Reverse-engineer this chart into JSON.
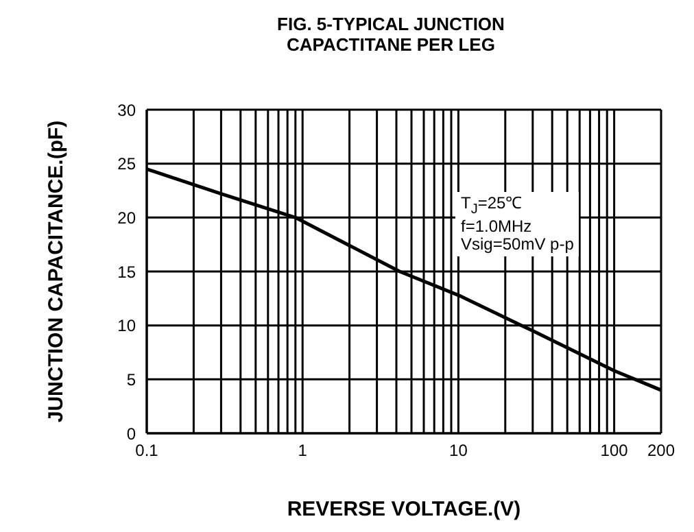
{
  "chart_data": {
    "type": "line",
    "title": "FIG. 5-TYPICAL JUNCTION CAPACTITANE PER LEG",
    "xlabel": "REVERSE VOLTAGE.(V)",
    "ylabel": "JUNCTION CAPACITANCE.(pF)",
    "annotations": [
      "T$_{J}$=25℃",
      "f=1.0MHz",
      "Vsig=50mV p-p"
    ],
    "x": [
      0.1,
      0.3,
      0.9,
      4.2,
      10,
      30,
      100,
      200
    ],
    "series": [
      {
        "color": "#000000",
        "values": [
          24.5,
          22.2,
          20,
          15,
          12.8,
          9.5,
          5.8,
          4
        ]
      }
    ],
    "log": "x",
    "grid": true,
    "xlim": [
      0.1,
      200
    ],
    "xticks": [
      0.1,
      {
        "value": 0.2,
        "label": null
      },
      {
        "value": 0.3,
        "label": null
      },
      {
        "value": 0.4,
        "label": null
      },
      {
        "value": 0.5,
        "label": null
      },
      {
        "value": 0.6,
        "label": null
      },
      {
        "value": 0.7,
        "label": null
      },
      {
        "value": 0.8,
        "label": null
      },
      {
        "value": 0.9,
        "label": null
      },
      1,
      {
        "value": 2,
        "label": null
      },
      {
        "value": 3,
        "label": null
      },
      {
        "value": 4,
        "label": null
      },
      {
        "value": 5,
        "label": null
      },
      {
        "value": 6,
        "label": null
      },
      {
        "value": 7,
        "label": null
      },
      {
        "value": 8,
        "label": null
      },
      {
        "value": 9,
        "label": null
      },
      10,
      {
        "value": 20,
        "label": null
      },
      {
        "value": 30,
        "label": null
      },
      {
        "value": 40,
        "label": null
      },
      {
        "value": 50,
        "label": null
      },
      {
        "value": 60,
        "label": null
      },
      {
        "value": 70,
        "label": null
      },
      {
        "value": 80,
        "label": null
      },
      {
        "value": 90,
        "label": null
      },
      100,
      200
    ],
    "ylim": [
      0,
      30
    ],
    "yticks": [
      0,
      5,
      10,
      15,
      20,
      25,
      30
    ]
  }
}
